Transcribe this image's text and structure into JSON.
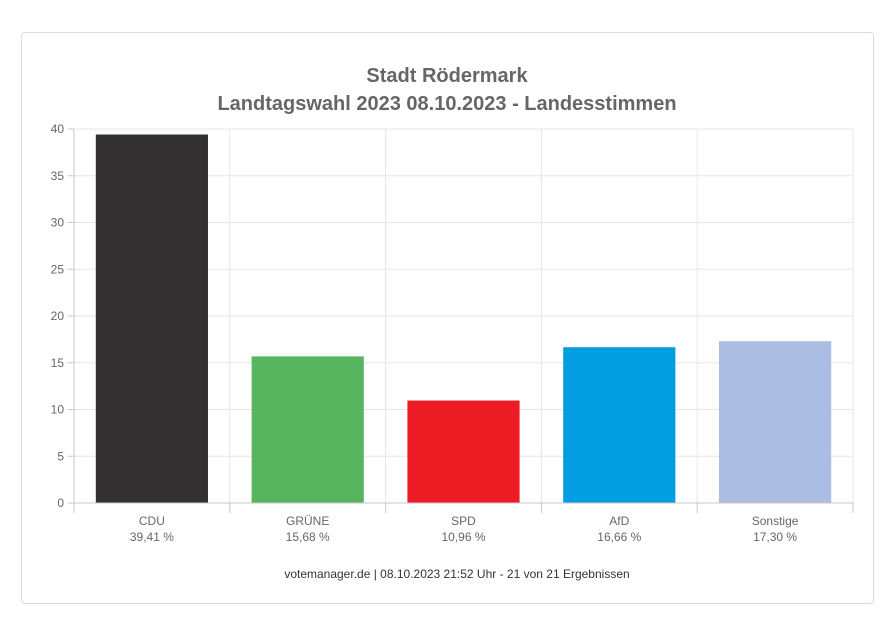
{
  "chart_data": {
    "type": "bar",
    "title": "Stadt Rödermark",
    "subtitle": "Landtagswahl 2023 08.10.2023  - Landesstimmen",
    "categories": [
      "CDU",
      "GRÜNE",
      "SPD",
      "AfD",
      "Sonstige"
    ],
    "values": [
      39.41,
      15.68,
      10.96,
      16.66,
      17.3
    ],
    "value_labels": [
      "39,41 %",
      "15,68 %",
      "10,96 %",
      "16,66 %",
      "17,30 %"
    ],
    "colors": [
      "#323031",
      "#57b45f",
      "#ed1c24",
      "#009ee0",
      "#abbde3"
    ],
    "ylim": [
      0,
      40
    ],
    "yticks": [
      0,
      5,
      10,
      15,
      20,
      25,
      30,
      35,
      40
    ],
    "grid": true,
    "legend": "none",
    "footer": "votemanager.de | 08.10.2023 21:52 Uhr - 21 von 21 Ergebnissen"
  }
}
